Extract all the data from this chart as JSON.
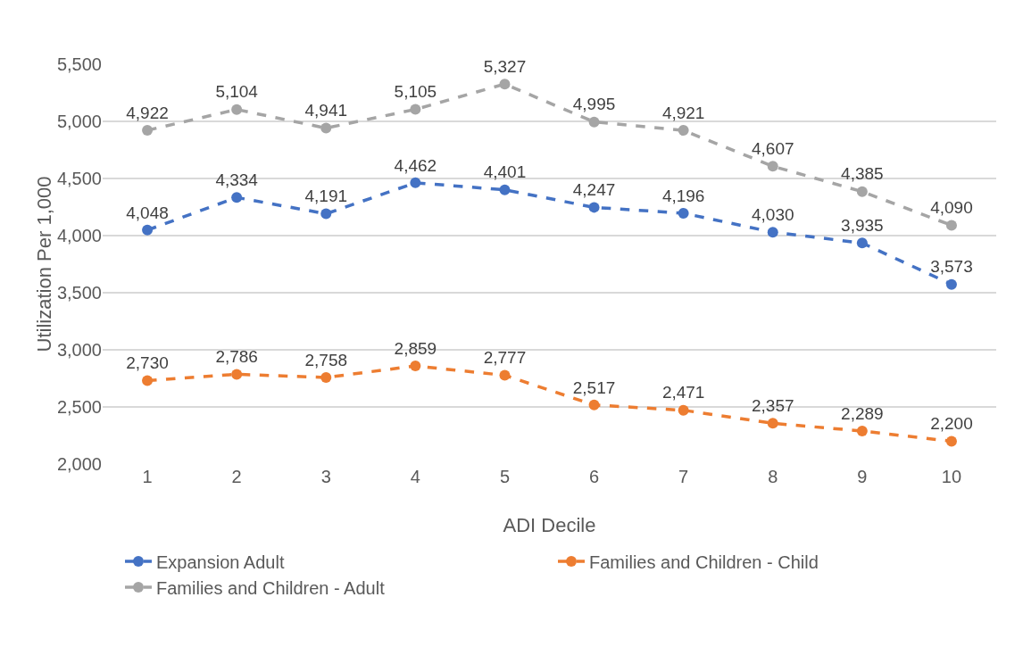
{
  "chart_data": {
    "type": "line",
    "xlabel": "ADI Decile",
    "ylabel": "Utilization Per 1,000",
    "categories": [
      "1",
      "2",
      "3",
      "4",
      "5",
      "6",
      "7",
      "8",
      "9",
      "10"
    ],
    "series": [
      {
        "name": "Expansion Adult",
        "color": "#4472c4",
        "values": [
          4048,
          4334,
          4191,
          4462,
          4401,
          4247,
          4196,
          4030,
          3935,
          3573
        ],
        "value_labels": [
          "4,048",
          "4,334",
          "4,191",
          "4,462",
          "4,401",
          "4,247",
          "4,196",
          "4,030",
          "3,935",
          "3,573"
        ]
      },
      {
        "name": "Families and Children - Child",
        "color": "#ed7d31",
        "values": [
          2730,
          2786,
          2758,
          2859,
          2777,
          2517,
          2471,
          2357,
          2289,
          2200
        ],
        "value_labels": [
          "2,730",
          "2,786",
          "2,758",
          "2,859",
          "2,777",
          "2,517",
          "2,471",
          "2,357",
          "2,289",
          "2,200"
        ]
      },
      {
        "name": "Families and Children - Adult",
        "color": "#a5a5a5",
        "values": [
          4922,
          5104,
          4941,
          5105,
          5327,
          4995,
          4921,
          4607,
          4385,
          4090
        ],
        "value_labels": [
          "4,922",
          "5,104",
          "4,941",
          "5,105",
          "5,327",
          "4,995",
          "4,921",
          "4,607",
          "4,385",
          "4,090"
        ]
      }
    ],
    "ylim": [
      2000,
      5500
    ],
    "yticks": [
      {
        "value": 2000,
        "label": "2,000"
      },
      {
        "value": 2500,
        "label": "2,500"
      },
      {
        "value": 3000,
        "label": "3,000"
      },
      {
        "value": 3500,
        "label": "3,500"
      },
      {
        "value": 4000,
        "label": "4,000"
      },
      {
        "value": 4500,
        "label": "4,500"
      },
      {
        "value": 5000,
        "label": "5,000"
      },
      {
        "value": 5500,
        "label": "5,500"
      }
    ],
    "grid": "y",
    "legend": "bottom",
    "marker": "circle",
    "line_style": "dashed"
  }
}
